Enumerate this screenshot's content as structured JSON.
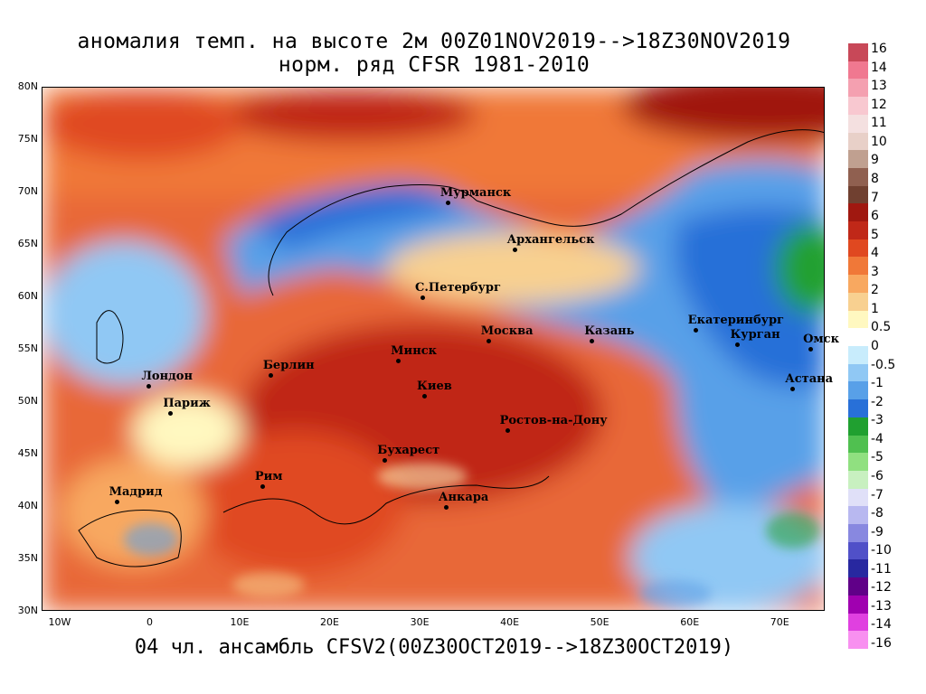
{
  "title_line1": "аномалия темп. на высоте 2м 00Z01NOV2019-->18Z30NOV2019",
  "title_line2": "норм. ряд CFSR 1981-2010",
  "footer": "04 чл. ансамбль CFSV2(00Z30OCT2019-->18Z30OCT2019)",
  "lat_labels": [
    "80N",
    "75N",
    "70N",
    "65N",
    "60N",
    "55N",
    "50N",
    "45N",
    "40N",
    "35N",
    "30N"
  ],
  "lon_labels": [
    "10W",
    "0",
    "10E",
    "20E",
    "30E",
    "40E",
    "50E",
    "60E",
    "70E"
  ],
  "cities": [
    {
      "name": "Мурманск",
      "lon": 33.1,
      "lat": 69.0
    },
    {
      "name": "Архангельск",
      "lon": 40.5,
      "lat": 64.5
    },
    {
      "name": "С.Петербург",
      "lon": 30.3,
      "lat": 59.9
    },
    {
      "name": "Москва",
      "lon": 37.6,
      "lat": 55.8
    },
    {
      "name": "Казань",
      "lon": 49.1,
      "lat": 55.8
    },
    {
      "name": "Екатеринбург",
      "lon": 60.6,
      "lat": 56.8
    },
    {
      "name": "Курган",
      "lon": 65.3,
      "lat": 55.4
    },
    {
      "name": "Омск",
      "lon": 73.4,
      "lat": 55.0
    },
    {
      "name": "Астана",
      "lon": 71.4,
      "lat": 51.2
    },
    {
      "name": "Минск",
      "lon": 27.6,
      "lat": 53.9
    },
    {
      "name": "Берлин",
      "lon": 13.4,
      "lat": 52.5
    },
    {
      "name": "Лондон",
      "lon": -0.1,
      "lat": 51.5
    },
    {
      "name": "Париж",
      "lon": 2.3,
      "lat": 48.9
    },
    {
      "name": "Киев",
      "lon": 30.5,
      "lat": 50.5
    },
    {
      "name": "Ростов-на-Дону",
      "lon": 39.7,
      "lat": 47.2
    },
    {
      "name": "Бухарест",
      "lon": 26.1,
      "lat": 44.4
    },
    {
      "name": "Рим",
      "lon": 12.5,
      "lat": 41.9
    },
    {
      "name": "Мадрид",
      "lon": -3.7,
      "lat": 40.4
    },
    {
      "name": "Анкара",
      "lon": 32.9,
      "lat": 39.9
    }
  ],
  "colorbar": {
    "labels": [
      "16",
      "14",
      "13",
      "12",
      "11",
      "10",
      "9",
      "8",
      "7",
      "6",
      "5",
      "4",
      "3",
      "2",
      "1",
      "0.5",
      "0",
      "-0.5",
      "-1",
      "-2",
      "-3",
      "-4",
      "-5",
      "-6",
      "-7",
      "-8",
      "-9",
      "-10",
      "-11",
      "-12",
      "-13",
      "-14",
      "-16"
    ],
    "colors": [
      "#c84858",
      "#f07890",
      "#f4a0b0",
      "#f8c8d0",
      "#f4e0e0",
      "#e8d0c8",
      "#c0a090",
      "#906050",
      "#704030",
      "#a01810",
      "#c02818",
      "#e04820",
      "#f07838",
      "#f8a860",
      "#f8d090",
      "#fff8c0",
      "#ffffff",
      "#c8ecfc",
      "#90c8f4",
      "#58a0e8",
      "#2870d8",
      "#20a030",
      "#50c050",
      "#90e080",
      "#c8f0c0",
      "#e0e0f8",
      "#b8b8f0",
      "#8888e0",
      "#5050c8",
      "#2828a0",
      "#600088",
      "#a000b0",
      "#e040e0",
      "#f890f0"
    ]
  }
}
